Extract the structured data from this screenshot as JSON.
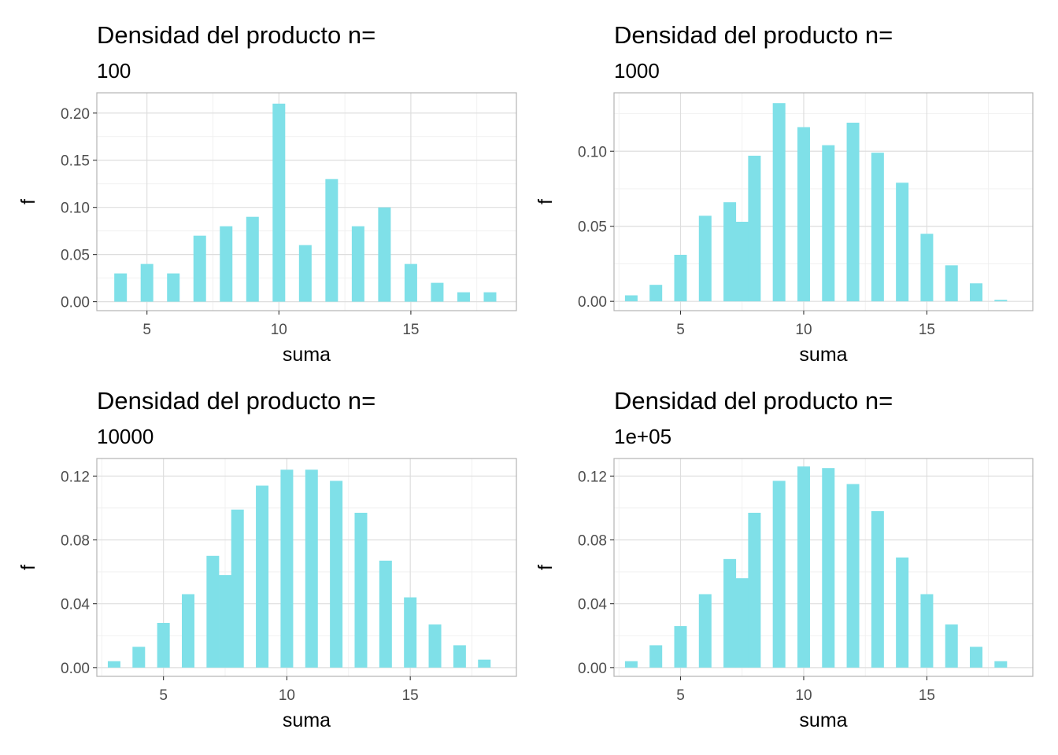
{
  "colors": {
    "bar": "#7FE0E8",
    "grid_major": "#dedede",
    "grid_minor": "#eeeeee",
    "border": "#b3b3b3"
  },
  "chart_data": [
    {
      "type": "bar",
      "title": "Densidad del producto n=",
      "subtitle": "100",
      "xlabel": "suma",
      "ylabel": "f",
      "xlim": [
        3.1,
        19.0
      ],
      "ylim": [
        -0.0095,
        0.2215
      ],
      "xticks": [
        5,
        10,
        15
      ],
      "xtick_labels": [
        "5",
        "10",
        "15"
      ],
      "yticks": [
        0,
        0.05,
        0.1,
        0.15,
        0.2
      ],
      "ytick_labels": [
        "0.00",
        "0.05",
        "0.10",
        "0.15",
        "0.20"
      ],
      "grid": true,
      "x": [
        4,
        5,
        6,
        7,
        8,
        9,
        10,
        11,
        12,
        13,
        14,
        15,
        16,
        17,
        18
      ],
      "values": [
        0.03,
        0.04,
        0.03,
        0.07,
        0.08,
        0.09,
        0.21,
        0.06,
        0.13,
        0.08,
        0.1,
        0.04,
        0.02,
        0.01,
        0.01
      ]
    },
    {
      "type": "bar",
      "title": "Densidad del producto n=",
      "subtitle": "1000",
      "xlabel": "suma",
      "ylabel": "f",
      "xlim": [
        2.3,
        19.3
      ],
      "ylim": [
        -0.0062,
        0.1389
      ],
      "xticks": [
        5,
        10,
        15
      ],
      "xtick_labels": [
        "5",
        "10",
        "15"
      ],
      "yticks": [
        0,
        0.05,
        0.1
      ],
      "ytick_labels": [
        "0.00",
        "0.05",
        "0.10"
      ],
      "grid": true,
      "x": [
        3,
        4,
        5,
        6,
        7,
        7.5,
        8,
        9,
        10,
        11,
        12,
        13,
        14,
        15,
        16,
        17,
        18
      ],
      "values": [
        0.004,
        0.011,
        0.031,
        0.057,
        0.066,
        0.053,
        0.097,
        0.132,
        0.116,
        0.104,
        0.119,
        0.099,
        0.079,
        0.045,
        0.024,
        0.012,
        0.001
      ]
    },
    {
      "type": "bar",
      "title": "Densidad del producto n=",
      "subtitle": "10000",
      "xlabel": "suma",
      "ylabel": "f",
      "xlim": [
        2.3,
        19.3
      ],
      "ylim": [
        -0.0055,
        0.131
      ],
      "xticks": [
        5,
        10,
        15
      ],
      "xtick_labels": [
        "5",
        "10",
        "15"
      ],
      "yticks": [
        0,
        0.04,
        0.08,
        0.12
      ],
      "ytick_labels": [
        "0.00",
        "0.04",
        "0.08",
        "0.12"
      ],
      "grid": true,
      "x": [
        3,
        4,
        5,
        6,
        7,
        7.5,
        8,
        9,
        10,
        11,
        12,
        13,
        14,
        15,
        16,
        17,
        18
      ],
      "values": [
        0.004,
        0.013,
        0.028,
        0.046,
        0.07,
        0.058,
        0.099,
        0.114,
        0.124,
        0.124,
        0.117,
        0.097,
        0.067,
        0.044,
        0.027,
        0.014,
        0.005
      ]
    },
    {
      "type": "bar",
      "title": "Densidad del producto n=",
      "subtitle": "1e+05",
      "xlabel": "suma",
      "ylabel": "f",
      "xlim": [
        2.3,
        19.3
      ],
      "ylim": [
        -0.0055,
        0.131
      ],
      "xticks": [
        5,
        10,
        15
      ],
      "xtick_labels": [
        "5",
        "10",
        "15"
      ],
      "yticks": [
        0,
        0.04,
        0.08,
        0.12
      ],
      "ytick_labels": [
        "0.00",
        "0.04",
        "0.08",
        "0.12"
      ],
      "grid": true,
      "x": [
        3,
        4,
        5,
        6,
        7,
        7.5,
        8,
        9,
        10,
        11,
        12,
        13,
        14,
        15,
        16,
        17,
        18
      ],
      "values": [
        0.004,
        0.014,
        0.026,
        0.046,
        0.068,
        0.056,
        0.097,
        0.117,
        0.126,
        0.125,
        0.115,
        0.098,
        0.069,
        0.046,
        0.027,
        0.013,
        0.004
      ]
    }
  ]
}
